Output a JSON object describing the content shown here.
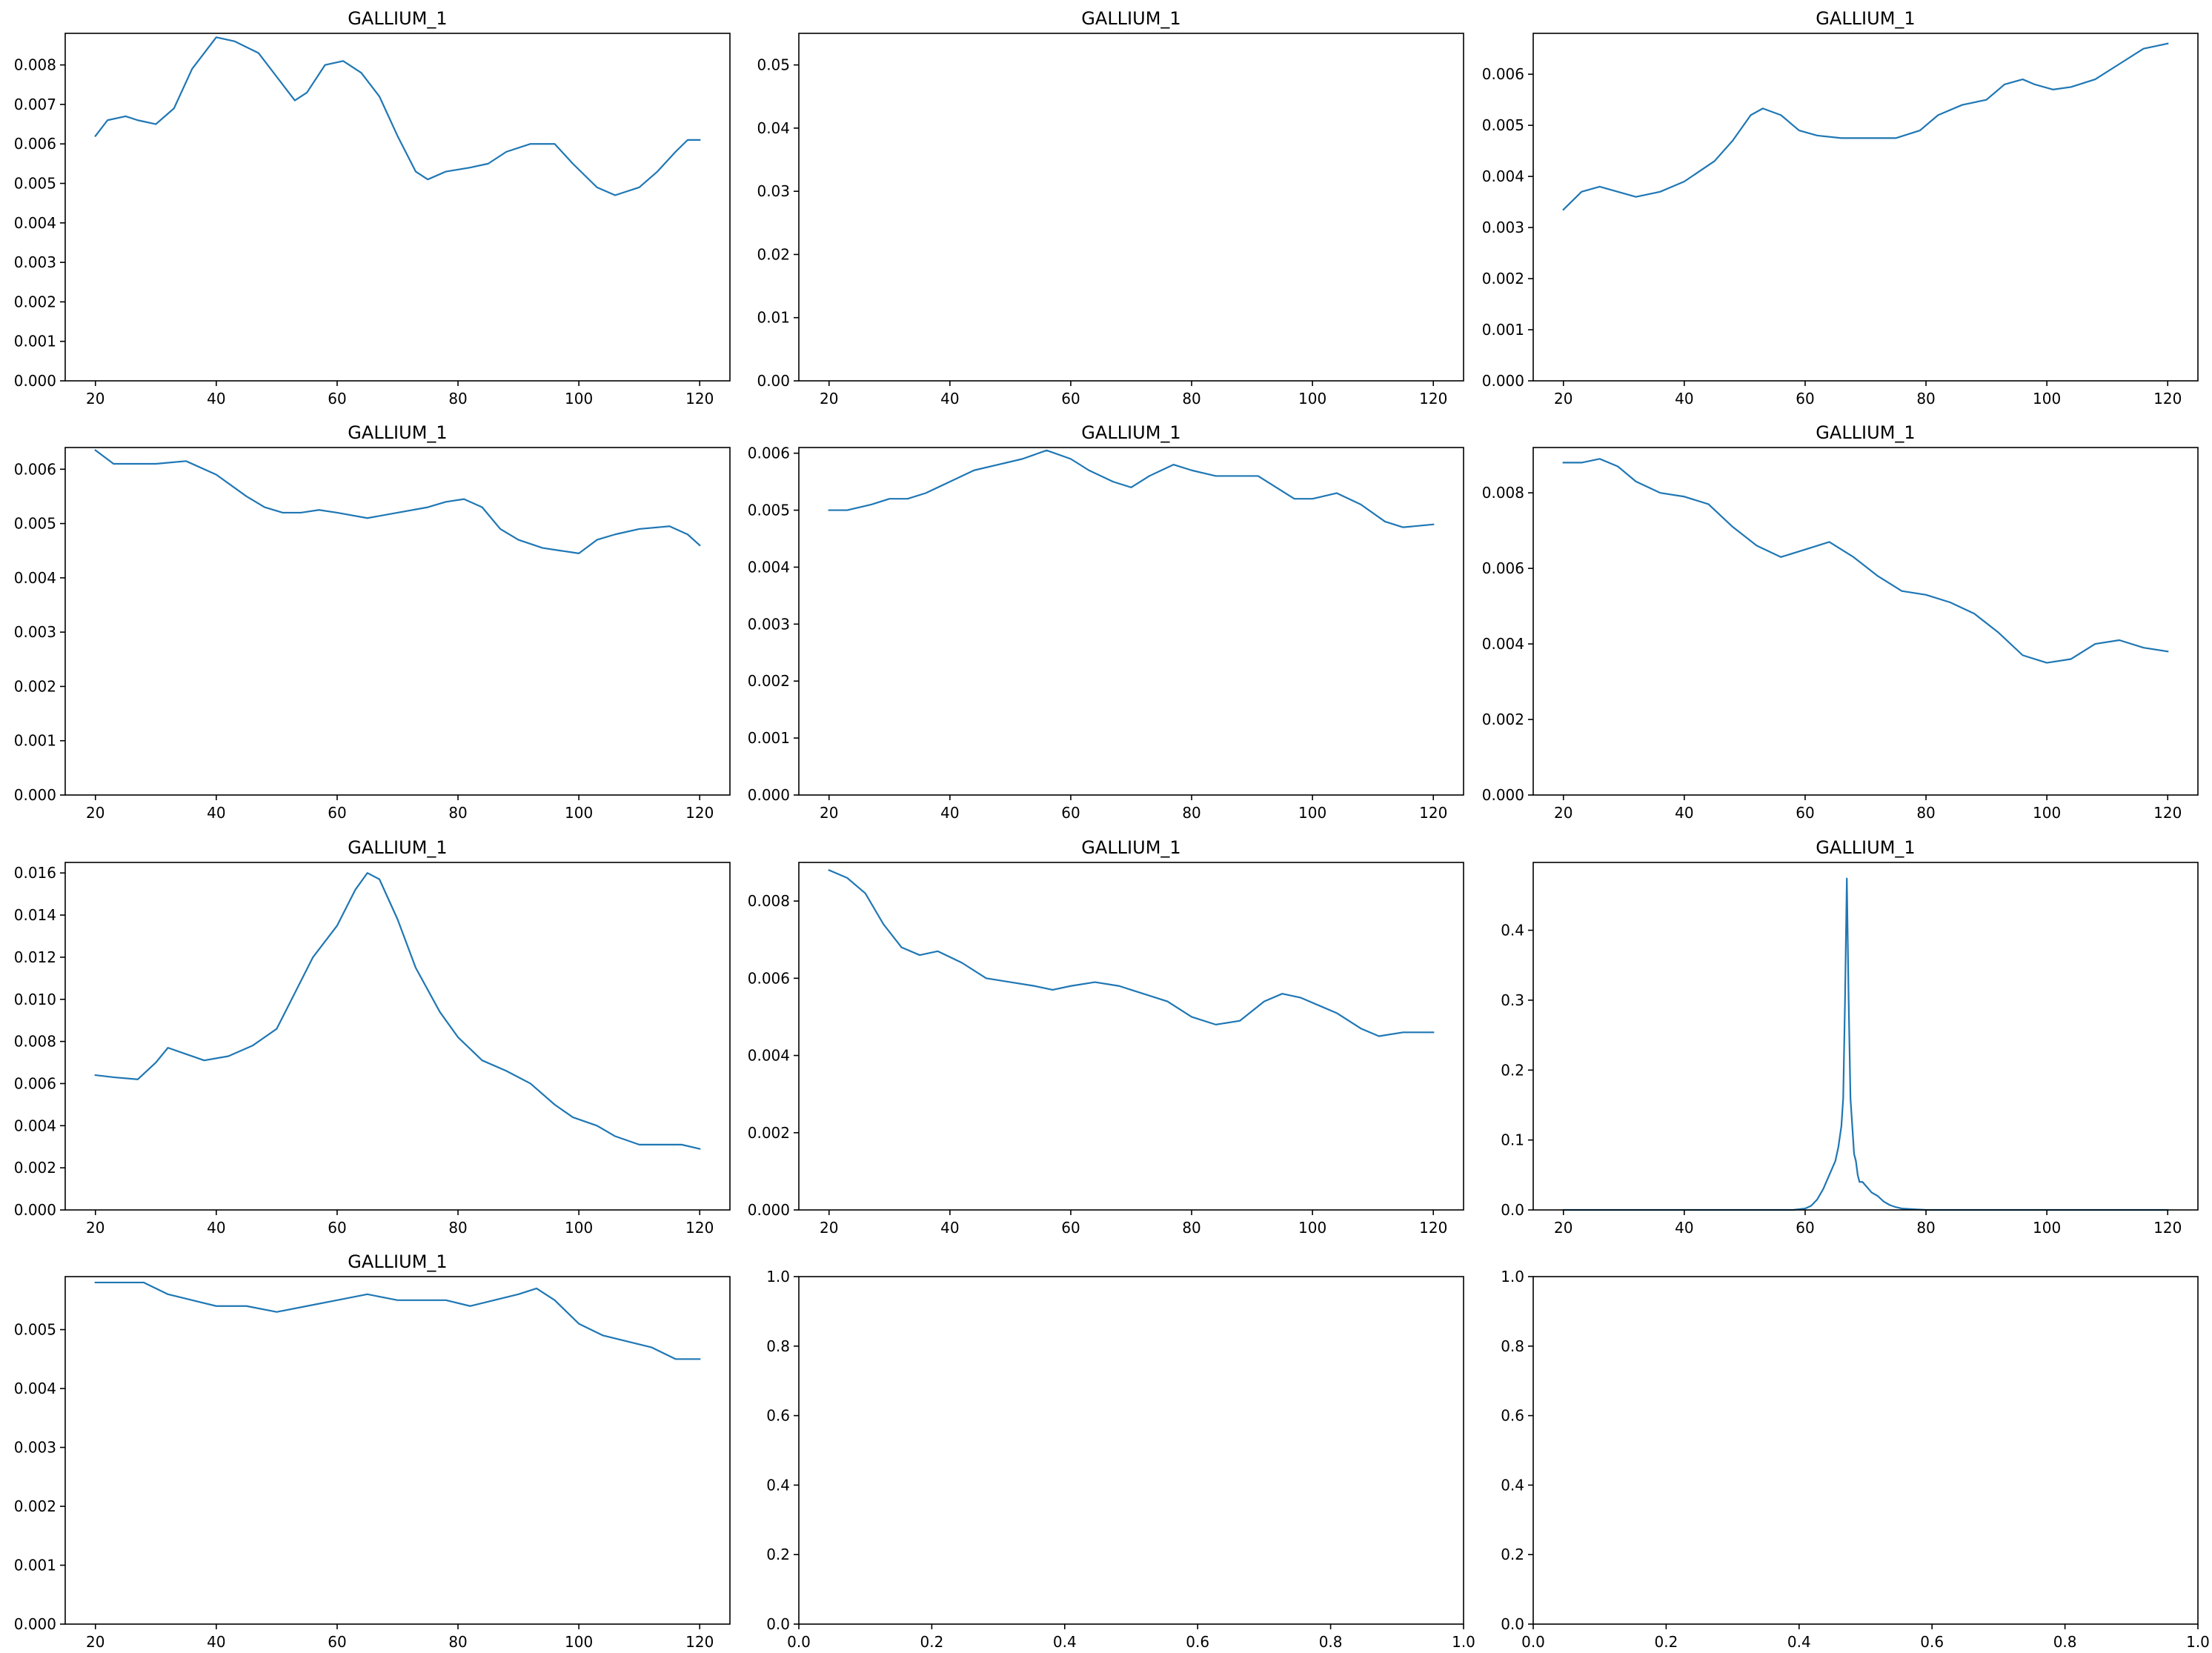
{
  "chart_data": [
    {
      "type": "line",
      "title": "GALLIUM_1",
      "xlim": [
        15,
        125
      ],
      "ylim": [
        0,
        0.0088
      ],
      "xticks": [
        "20",
        "40",
        "60",
        "80",
        "100",
        "120"
      ],
      "yticks": [
        "0.000",
        "0.001",
        "0.002",
        "0.003",
        "0.004",
        "0.005",
        "0.006",
        "0.007",
        "0.008"
      ],
      "series": [
        {
          "color": "#1f77b4",
          "x": [
            20,
            22,
            25,
            27,
            30,
            33,
            36,
            40,
            43,
            47,
            50,
            53,
            55,
            58,
            61,
            64,
            67,
            70,
            73,
            75,
            78,
            82,
            85,
            88,
            92,
            96,
            99,
            103,
            106,
            110,
            113,
            116,
            118,
            120
          ],
          "y": [
            0.0062,
            0.0066,
            0.0067,
            0.0066,
            0.0065,
            0.0069,
            0.0079,
            0.0087,
            0.0086,
            0.0083,
            0.0077,
            0.0071,
            0.0073,
            0.008,
            0.0081,
            0.0078,
            0.0072,
            0.0062,
            0.0053,
            0.0051,
            0.0053,
            0.0054,
            0.0055,
            0.0058,
            0.006,
            0.006,
            0.0055,
            0.0049,
            0.0047,
            0.0049,
            0.0053,
            0.0058,
            0.0061,
            0.0061
          ]
        }
      ]
    },
    {
      "type": "line",
      "title": "GALLIUM_1",
      "xlim": [
        15,
        125
      ],
      "ylim": [
        0,
        0.055
      ],
      "xticks": [
        "20",
        "40",
        "60",
        "80",
        "100",
        "120"
      ],
      "yticks": [
        "0.00",
        "0.01",
        "0.02",
        "0.03",
        "0.04",
        "0.05"
      ],
      "series": []
    },
    {
      "type": "line",
      "title": "GALLIUM_1",
      "xlim": [
        15,
        125
      ],
      "ylim": [
        0,
        0.0068
      ],
      "xticks": [
        "20",
        "40",
        "60",
        "80",
        "100",
        "120"
      ],
      "yticks": [
        "0.000",
        "0.001",
        "0.002",
        "0.003",
        "0.004",
        "0.005",
        "0.006"
      ],
      "series": [
        {
          "color": "#1f77b4",
          "x": [
            20,
            23,
            26,
            29,
            32,
            36,
            40,
            45,
            48,
            51,
            53,
            56,
            59,
            62,
            66,
            70,
            75,
            79,
            82,
            86,
            90,
            93,
            96,
            98,
            101,
            104,
            108,
            112,
            116,
            120
          ],
          "y": [
            0.00335,
            0.0037,
            0.0038,
            0.0037,
            0.0036,
            0.0037,
            0.0039,
            0.0043,
            0.0047,
            0.0052,
            0.00533,
            0.0052,
            0.0049,
            0.0048,
            0.00475,
            0.00475,
            0.00475,
            0.0049,
            0.0052,
            0.0054,
            0.0055,
            0.0058,
            0.0059,
            0.0058,
            0.0057,
            0.00575,
            0.0059,
            0.0062,
            0.0065,
            0.0066
          ]
        }
      ]
    },
    {
      "type": "line",
      "title": "GALLIUM_1",
      "xlim": [
        15,
        125
      ],
      "ylim": [
        0,
        0.0064
      ],
      "xticks": [
        "20",
        "40",
        "60",
        "80",
        "100",
        "120"
      ],
      "yticks": [
        "0.000",
        "0.001",
        "0.002",
        "0.003",
        "0.004",
        "0.005",
        "0.006"
      ],
      "series": [
        {
          "color": "#1f77b4",
          "x": [
            20,
            23,
            26,
            30,
            35,
            40,
            45,
            48,
            51,
            54,
            57,
            60,
            65,
            70,
            75,
            78,
            81,
            84,
            87,
            90,
            94,
            97,
            100,
            103,
            106,
            110,
            115,
            118,
            120
          ],
          "y": [
            0.00635,
            0.0061,
            0.0061,
            0.0061,
            0.00615,
            0.0059,
            0.0055,
            0.0053,
            0.0052,
            0.0052,
            0.00525,
            0.0052,
            0.0051,
            0.0052,
            0.0053,
            0.0054,
            0.00545,
            0.0053,
            0.0049,
            0.0047,
            0.00455,
            0.0045,
            0.00445,
            0.0047,
            0.0048,
            0.0049,
            0.00495,
            0.0048,
            0.0046
          ]
        }
      ]
    },
    {
      "type": "line",
      "title": "GALLIUM_1",
      "xlim": [
        15,
        125
      ],
      "ylim": [
        0,
        0.0061
      ],
      "xticks": [
        "20",
        "40",
        "60",
        "80",
        "100",
        "120"
      ],
      "yticks": [
        "0.000",
        "0.001",
        "0.002",
        "0.003",
        "0.004",
        "0.005",
        "0.006"
      ],
      "series": [
        {
          "color": "#1f77b4",
          "x": [
            20,
            23,
            27,
            30,
            33,
            36,
            40,
            44,
            48,
            52,
            56,
            60,
            63,
            67,
            70,
            73,
            77,
            80,
            84,
            88,
            91,
            94,
            97,
            100,
            104,
            108,
            112,
            115,
            120
          ],
          "y": [
            0.005,
            0.005,
            0.0051,
            0.0052,
            0.0052,
            0.0053,
            0.0055,
            0.0057,
            0.0058,
            0.0059,
            0.00605,
            0.0059,
            0.0057,
            0.0055,
            0.0054,
            0.0056,
            0.0058,
            0.0057,
            0.0056,
            0.0056,
            0.0056,
            0.0054,
            0.0052,
            0.0052,
            0.0053,
            0.0051,
            0.0048,
            0.0047,
            0.00475
          ]
        }
      ]
    },
    {
      "type": "line",
      "title": "GALLIUM_1",
      "xlim": [
        15,
        125
      ],
      "ylim": [
        0,
        0.0092
      ],
      "xticks": [
        "20",
        "40",
        "60",
        "80",
        "100",
        "120"
      ],
      "yticks": [
        "0.000",
        "0.002",
        "0.004",
        "0.006",
        "0.008"
      ],
      "series": [
        {
          "color": "#1f77b4",
          "x": [
            20,
            23,
            26,
            29,
            32,
            36,
            40,
            44,
            48,
            52,
            56,
            60,
            64,
            68,
            72,
            76,
            80,
            84,
            88,
            92,
            96,
            100,
            104,
            108,
            112,
            116,
            120
          ],
          "y": [
            0.0088,
            0.0088,
            0.0089,
            0.0087,
            0.0083,
            0.008,
            0.0079,
            0.0077,
            0.0071,
            0.0066,
            0.0063,
            0.0065,
            0.0067,
            0.0063,
            0.0058,
            0.0054,
            0.0053,
            0.0051,
            0.0048,
            0.0043,
            0.0037,
            0.0035,
            0.0036,
            0.004,
            0.0041,
            0.0039,
            0.0038
          ]
        }
      ]
    },
    {
      "type": "line",
      "title": "GALLIUM_1",
      "xlim": [
        15,
        125
      ],
      "ylim": [
        0,
        0.0165
      ],
      "xticks": [
        "20",
        "40",
        "60",
        "80",
        "100",
        "120"
      ],
      "yticks": [
        "0.000",
        "0.002",
        "0.004",
        "0.006",
        "0.008",
        "0.010",
        "0.012",
        "0.014",
        "0.016"
      ],
      "series": [
        {
          "color": "#1f77b4",
          "x": [
            20,
            23,
            27,
            30,
            32,
            35,
            38,
            42,
            46,
            50,
            53,
            56,
            60,
            63,
            65,
            67,
            70,
            73,
            77,
            80,
            84,
            88,
            92,
            96,
            99,
            103,
            106,
            110,
            113,
            117,
            120
          ],
          "y": [
            0.0064,
            0.0063,
            0.0062,
            0.007,
            0.0077,
            0.0074,
            0.0071,
            0.0073,
            0.0078,
            0.0086,
            0.0103,
            0.012,
            0.0135,
            0.0152,
            0.016,
            0.0157,
            0.0138,
            0.0115,
            0.0094,
            0.0082,
            0.0071,
            0.0066,
            0.006,
            0.005,
            0.0044,
            0.004,
            0.0035,
            0.0031,
            0.0031,
            0.0031,
            0.0029
          ]
        }
      ]
    },
    {
      "type": "line",
      "title": "GALLIUM_1",
      "xlim": [
        15,
        125
      ],
      "ylim": [
        0,
        0.009
      ],
      "xticks": [
        "20",
        "40",
        "60",
        "80",
        "100",
        "120"
      ],
      "yticks": [
        "0.000",
        "0.002",
        "0.004",
        "0.006",
        "0.008"
      ],
      "series": [
        {
          "color": "#1f77b4",
          "x": [
            20,
            23,
            26,
            29,
            32,
            35,
            38,
            42,
            46,
            50,
            54,
            57,
            60,
            64,
            68,
            72,
            76,
            80,
            84,
            88,
            92,
            95,
            98,
            101,
            104,
            108,
            111,
            115,
            120
          ],
          "y": [
            0.0088,
            0.0086,
            0.0082,
            0.0074,
            0.0068,
            0.0066,
            0.0067,
            0.0064,
            0.006,
            0.0059,
            0.0058,
            0.0057,
            0.0058,
            0.0059,
            0.0058,
            0.0056,
            0.0054,
            0.005,
            0.0048,
            0.0049,
            0.0054,
            0.0056,
            0.0055,
            0.0053,
            0.0051,
            0.0047,
            0.0045,
            0.0046,
            0.0046
          ]
        }
      ]
    },
    {
      "type": "line",
      "title": "GALLIUM_1",
      "xlim": [
        15,
        125
      ],
      "ylim": [
        0,
        0.497
      ],
      "xticks": [
        "20",
        "40",
        "60",
        "80",
        "100",
        "120"
      ],
      "yticks": [
        "0.0",
        "0.1",
        "0.2",
        "0.3",
        "0.4"
      ],
      "series": [
        {
          "color": "#1f77b4",
          "x": [
            20,
            40,
            58,
            60,
            61,
            62,
            63,
            64,
            64.5,
            65,
            65.5,
            66,
            66.3,
            66.6,
            66.9,
            67.2,
            67.5,
            67.8,
            68.1,
            68.4,
            68.7,
            69,
            69.5,
            70,
            70.5,
            71,
            72,
            73,
            74,
            75,
            76,
            78,
            80,
            100,
            120
          ],
          "y": [
            0,
            0,
            0,
            0.002,
            0.006,
            0.015,
            0.03,
            0.05,
            0.06,
            0.07,
            0.09,
            0.12,
            0.16,
            0.3,
            0.474,
            0.3,
            0.16,
            0.12,
            0.08,
            0.07,
            0.05,
            0.04,
            0.04,
            0.035,
            0.03,
            0.025,
            0.02,
            0.012,
            0.007,
            0.004,
            0.002,
            0.001,
            0,
            0,
            0
          ]
        }
      ]
    },
    {
      "type": "line",
      "title": "GALLIUM_1",
      "xlim": [
        15,
        125
      ],
      "ylim": [
        0,
        0.0059
      ],
      "xticks": [
        "20",
        "40",
        "60",
        "80",
        "100",
        "120"
      ],
      "yticks": [
        "0.000",
        "0.001",
        "0.002",
        "0.003",
        "0.004",
        "0.005"
      ],
      "series": [
        {
          "color": "#1f77b4",
          "x": [
            20,
            24,
            28,
            32,
            36,
            40,
            45,
            50,
            55,
            60,
            65,
            70,
            75,
            78,
            82,
            86,
            90,
            93,
            96,
            100,
            104,
            108,
            112,
            116,
            120
          ],
          "y": [
            0.0058,
            0.0058,
            0.0058,
            0.0056,
            0.0055,
            0.0054,
            0.0054,
            0.0053,
            0.0054,
            0.0055,
            0.0056,
            0.0055,
            0.0055,
            0.0055,
            0.0054,
            0.0055,
            0.0056,
            0.0057,
            0.0055,
            0.0051,
            0.0049,
            0.0048,
            0.0047,
            0.0045,
            0.0045
          ]
        }
      ]
    },
    {
      "type": "line",
      "title": "",
      "xlim": [
        0,
        1
      ],
      "ylim": [
        0,
        1
      ],
      "xticks": [
        "0.0",
        "0.2",
        "0.4",
        "0.6",
        "0.8",
        "1.0"
      ],
      "yticks": [
        "0.0",
        "0.2",
        "0.4",
        "0.6",
        "0.8",
        "1.0"
      ],
      "series": []
    },
    {
      "type": "line",
      "title": "",
      "xlim": [
        0,
        1
      ],
      "ylim": [
        0,
        1
      ],
      "xticks": [
        "0.0",
        "0.2",
        "0.4",
        "0.6",
        "0.8",
        "1.0"
      ],
      "yticks": [
        "0.0",
        "0.2",
        "0.4",
        "0.6",
        "0.8",
        "1.0"
      ],
      "series": []
    }
  ]
}
